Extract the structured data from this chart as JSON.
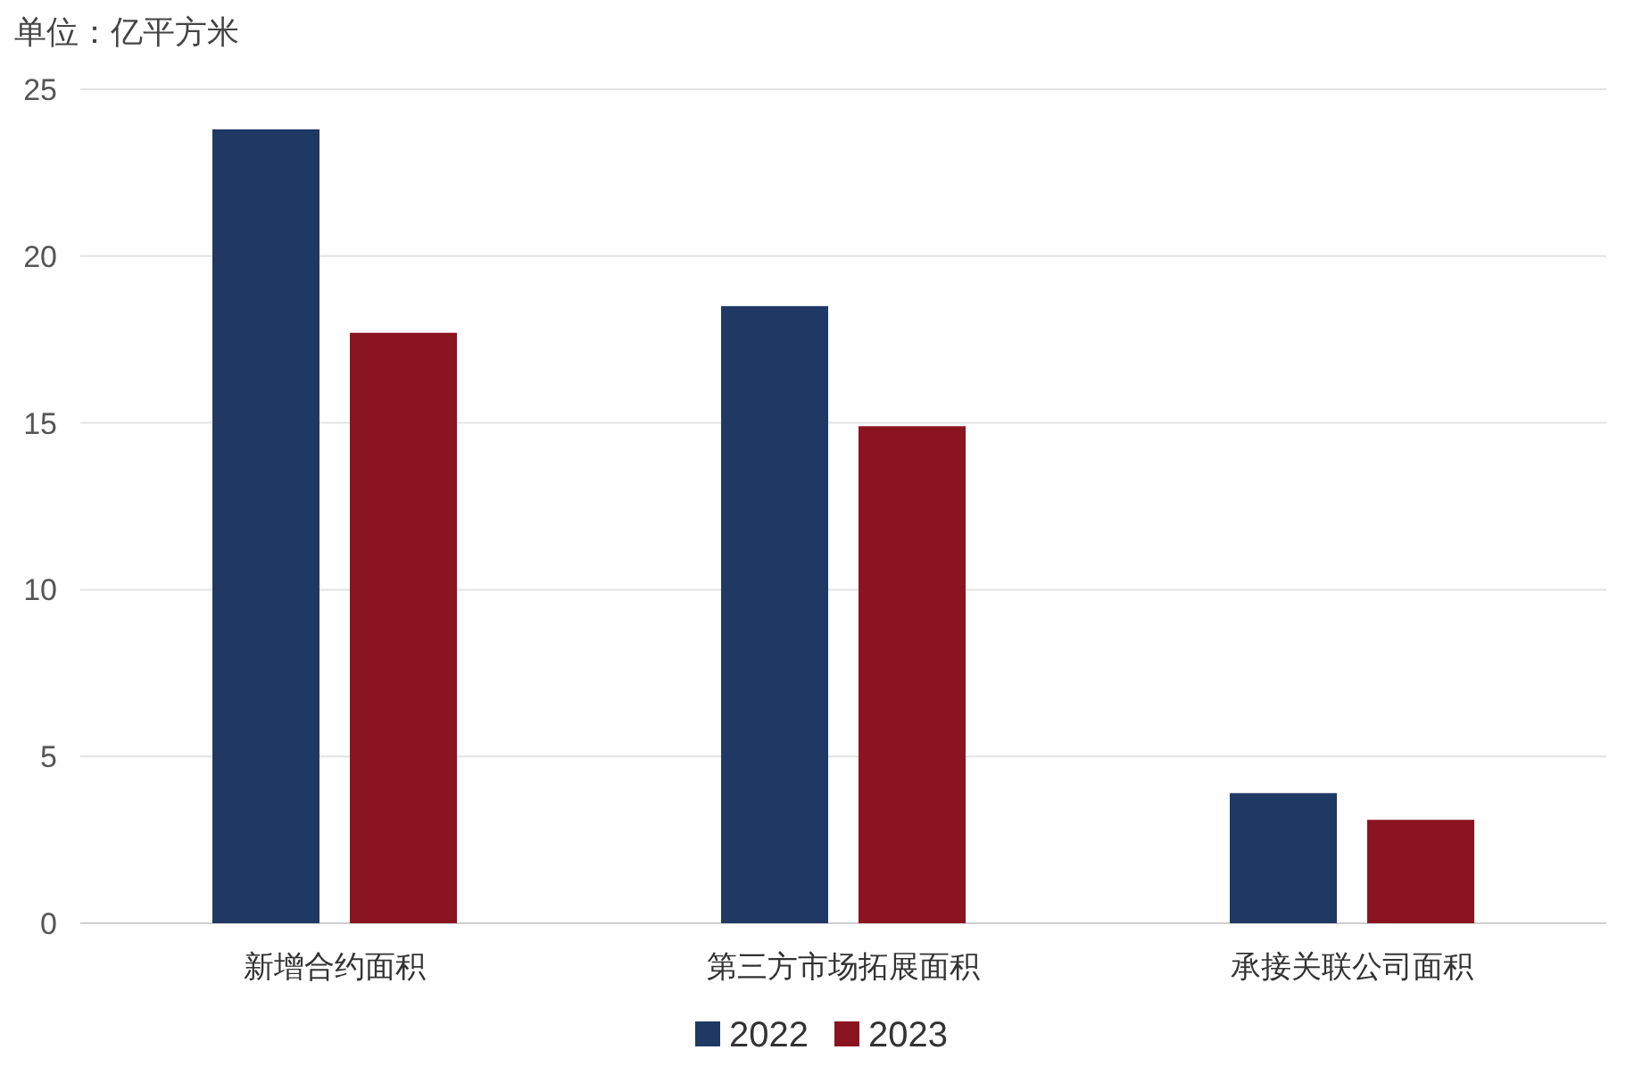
{
  "chart_data": {
    "type": "bar",
    "ylabel": "单位：亿平方米",
    "categories": [
      "新增合约面积",
      "第三方市场拓展面积",
      "承接关联公司面积"
    ],
    "series": [
      {
        "name": "2022",
        "color": "#203864",
        "values": [
          23.8,
          18.5,
          3.9
        ]
      },
      {
        "name": "2023",
        "color": "#8b1421",
        "values": [
          17.7,
          14.9,
          3.1
        ]
      }
    ],
    "ylim": [
      0,
      25
    ],
    "yticks": [
      0,
      5,
      10,
      15,
      20,
      25
    ],
    "grid": "y",
    "legend": "bottom"
  }
}
